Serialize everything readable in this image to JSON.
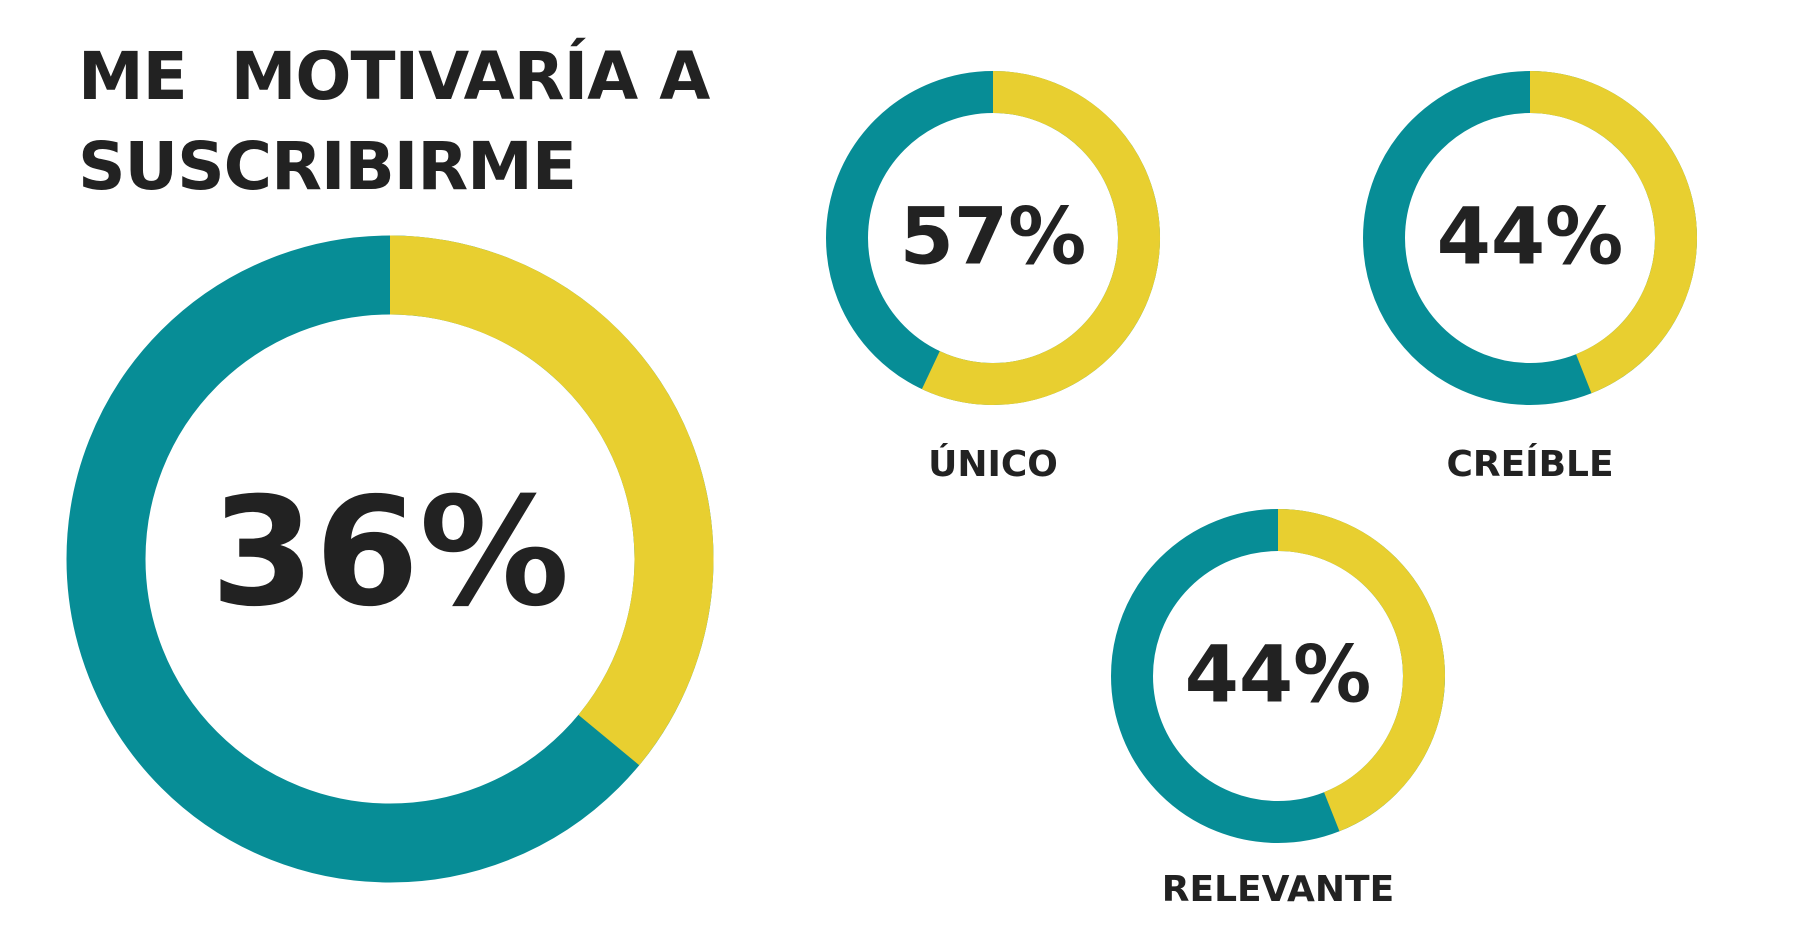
{
  "chart_data": [
    {
      "type": "donut",
      "title": "ME  MOTIVARÍA A SUSCRIBIRME",
      "values": [
        36
      ],
      "value_labels": [
        "36%"
      ],
      "color": "#e8cf30",
      "rest_color": "#078d96"
    },
    {
      "type": "donut",
      "title": "ÚNICO",
      "values": [
        57
      ],
      "value_labels": [
        "57%"
      ],
      "color": "#e8cf30",
      "rest_color": "#078d96"
    },
    {
      "type": "donut",
      "title": "CREÍBLE",
      "values": [
        44
      ],
      "value_labels": [
        "44%"
      ],
      "color": "#e8cf30",
      "rest_color": "#078d96"
    },
    {
      "type": "donut",
      "title": "RELEVANTE",
      "values": [
        44
      ],
      "value_labels": [
        "44%"
      ],
      "color": "#e8cf30",
      "rest_color": "#078d96"
    }
  ]
}
